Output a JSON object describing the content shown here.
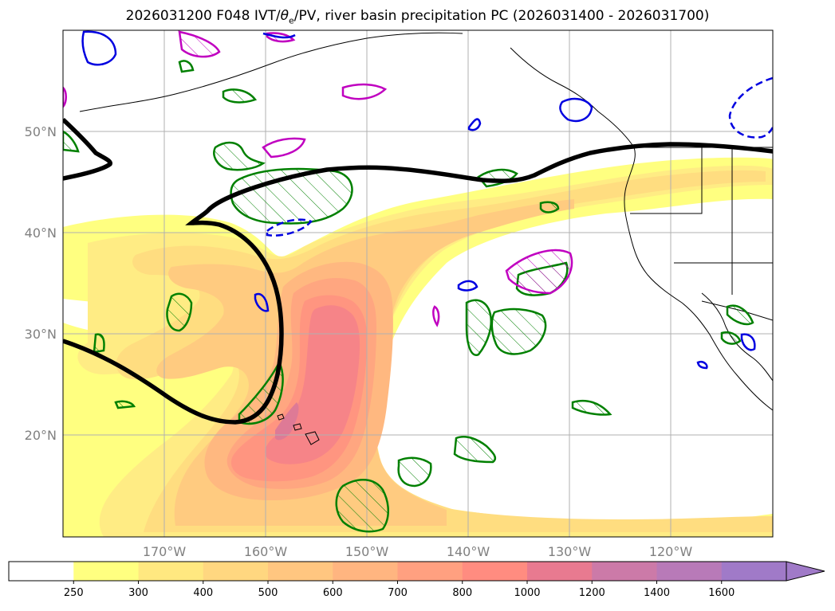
{
  "title": {
    "prefix": "2026031200 F048 IVT/",
    "theta": "θ",
    "theta_sub": "e",
    "suffix": "/PV, river basin precipitation PC (2026031400 - 2026031700)"
  },
  "map": {
    "lon_labels": [
      "170°W",
      "160°W",
      "150°W",
      "140°W",
      "130°W",
      "120°W"
    ],
    "lat_labels": [
      "50°N",
      "40°N",
      "30°N",
      "20°N"
    ]
  },
  "colorbar": {
    "levels": [
      "250",
      "300",
      "400",
      "500",
      "600",
      "700",
      "800",
      "1000",
      "1200",
      "1400",
      "1600"
    ],
    "colors": [
      "#ffffff",
      "#ffff80",
      "#ffe880",
      "#ffd780",
      "#ffc680",
      "#ffb580",
      "#ffa080",
      "#ff8c80",
      "#e87a90",
      "#cc7aa8",
      "#b87ab8",
      "#a07ac8"
    ],
    "extend": "max"
  },
  "legend_colors": {
    "pv_line": "#000000",
    "theta_e_contour": "#008000",
    "positive_anomaly": "#c000c0",
    "negative_anomaly": "#0000e0"
  }
}
